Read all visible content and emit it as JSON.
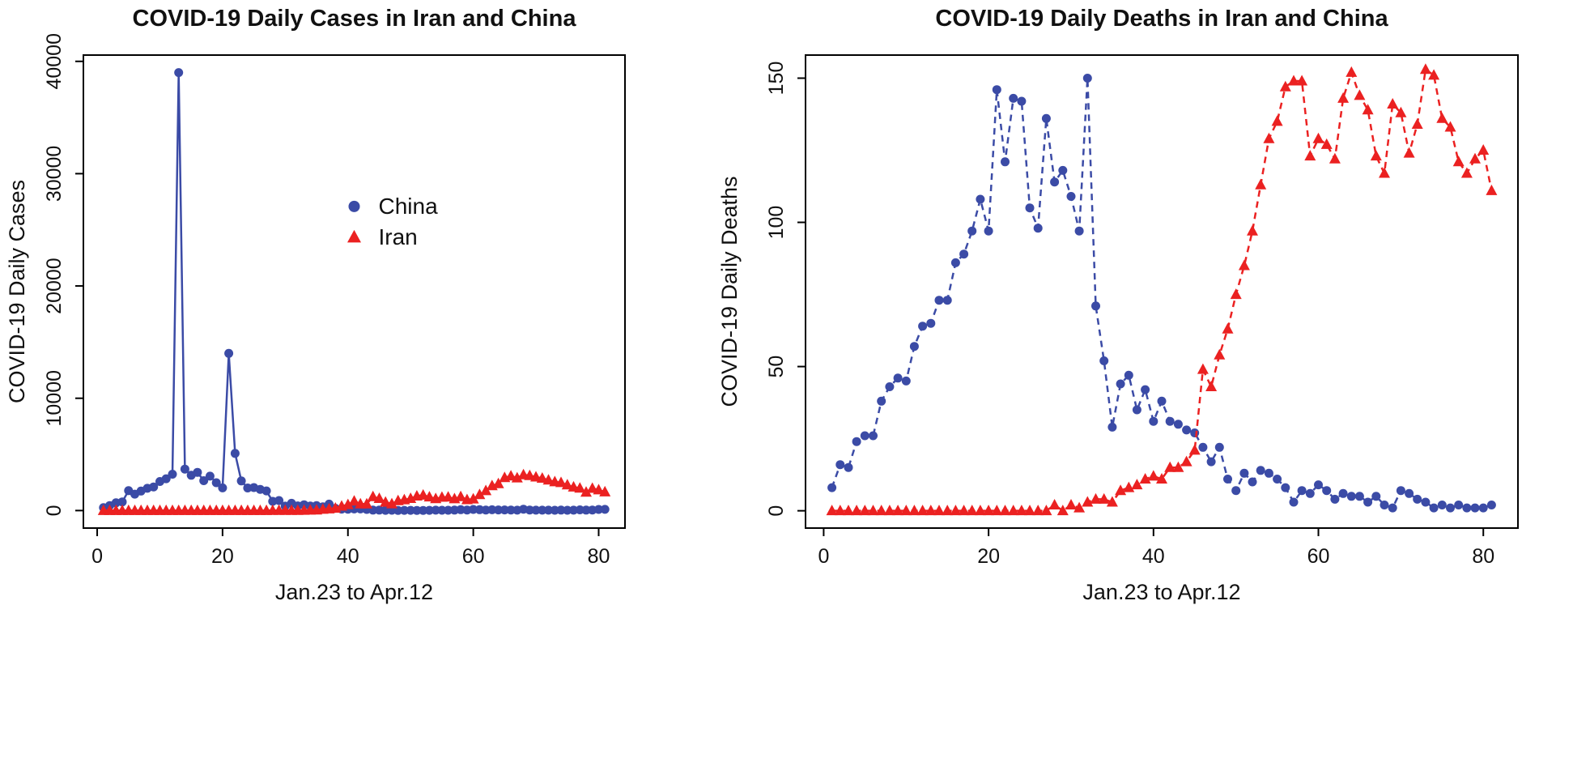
{
  "figure": {
    "background": "#ffffff"
  },
  "colors": {
    "china": "#3b4ba6",
    "iran": "#eb2121",
    "axis": "#000000",
    "text": "#111111"
  },
  "chart_data": [
    {
      "type": "line",
      "title": "COVID-19 Daily Cases in Iran and China",
      "xlabel": "Jan.23 to Apr.12",
      "ylabel": "COVID-19 Daily Cases",
      "x_start": 1,
      "x_step": 1,
      "xticks": [
        0,
        20,
        40,
        60,
        80
      ],
      "yticks": [
        0,
        10000,
        20000,
        30000,
        40000
      ],
      "xlim": [
        -2.2,
        84.2
      ],
      "ylim": [
        -1560,
        40560
      ],
      "grid": false,
      "legend": {
        "visible": true,
        "position_fraction": {
          "x": 0.5,
          "y": 0.32
        },
        "entries": [
          {
            "label": "China",
            "marker": "circle",
            "color_key": "china"
          },
          {
            "label": "Iran",
            "marker": "triangle",
            "color_key": "iran"
          }
        ]
      },
      "series": [
        {
          "name": "China",
          "marker": "circle",
          "color_key": "china",
          "line": "solid",
          "values": [
            259,
            444,
            688,
            769,
            1771,
            1459,
            1737,
            1982,
            2102,
            2590,
            2829,
            3235,
            39000,
            3694,
            3143,
            3399,
            2656,
            3062,
            2478,
            2015,
            14000,
            5090,
            2641,
            2009,
            2048,
            1886,
            1749,
            820,
            889,
            397,
            650,
            415,
            518,
            412,
            439,
            327,
            573,
            202,
            125,
            119,
            139,
            143,
            99,
            44,
            40,
            19,
            24,
            15,
            20,
            16,
            11,
            13,
            21,
            32,
            26,
            29,
            39,
            78,
            46,
            102,
            78,
            47,
            67,
            55,
            54,
            45,
            31,
            123,
            48,
            36,
            35,
            31,
            30,
            39,
            30,
            32,
            63,
            42,
            46,
            99,
            108
          ]
        },
        {
          "name": "Iran",
          "marker": "triangle",
          "color_key": "iran",
          "line": "solid",
          "values": [
            0,
            0,
            0,
            0,
            0,
            0,
            0,
            0,
            0,
            0,
            0,
            0,
            0,
            0,
            0,
            0,
            0,
            0,
            0,
            0,
            0,
            0,
            0,
            0,
            0,
            0,
            0,
            2,
            3,
            13,
            10,
            15,
            18,
            34,
            44,
            106,
            143,
            205,
            385,
            523,
            835,
            586,
            591,
            1234,
            1076,
            743,
            595,
            881,
            958,
            1075,
            1289,
            1365,
            1209,
            1053,
            1178,
            1192,
            1046,
            1237,
            966,
            1028,
            1411,
            1762,
            2206,
            2389,
            2926,
            3076,
            2901,
            3186,
            3110,
            2987,
            2875,
            2715,
            2560,
            2483,
            2274,
            2089,
            1997,
            1634,
            1972,
            1837,
            1657
          ]
        }
      ]
    },
    {
      "type": "line",
      "title": "COVID-19 Daily Deaths in Iran and China",
      "xlabel": "Jan.23 to Apr.12",
      "ylabel": "COVID-19 Daily Deaths",
      "x_start": 1,
      "x_step": 1,
      "xticks": [
        0,
        20,
        40,
        60,
        80
      ],
      "yticks": [
        0,
        50,
        100,
        150
      ],
      "xlim": [
        -2.2,
        84.2
      ],
      "ylim": [
        -6,
        158
      ],
      "grid": false,
      "legend": {
        "visible": false,
        "entries": []
      },
      "series": [
        {
          "name": "China",
          "marker": "circle",
          "color_key": "china",
          "line": "dashed",
          "values": [
            8,
            16,
            15,
            24,
            26,
            26,
            38,
            43,
            46,
            45,
            57,
            64,
            65,
            73,
            73,
            86,
            89,
            97,
            108,
            97,
            146,
            121,
            143,
            142,
            105,
            98,
            136,
            114,
            118,
            109,
            97,
            150,
            71,
            52,
            29,
            44,
            47,
            35,
            42,
            31,
            38,
            31,
            30,
            28,
            27,
            22,
            17,
            22,
            11,
            7,
            13,
            10,
            14,
            13,
            11,
            8,
            3,
            7,
            6,
            9,
            7,
            4,
            6,
            5,
            5,
            3,
            5,
            2,
            1,
            7,
            6,
            4,
            3,
            1,
            2,
            1,
            2,
            1,
            1,
            1,
            2
          ]
        },
        {
          "name": "Iran",
          "marker": "triangle",
          "color_key": "iran",
          "line": "dashed",
          "values": [
            0,
            0,
            0,
            0,
            0,
            0,
            0,
            0,
            0,
            0,
            0,
            0,
            0,
            0,
            0,
            0,
            0,
            0,
            0,
            0,
            0,
            0,
            0,
            0,
            0,
            0,
            0,
            2,
            0,
            2,
            1,
            3,
            4,
            4,
            3,
            7,
            8,
            9,
            11,
            12,
            11,
            15,
            15,
            17,
            21,
            49,
            43,
            54,
            63,
            75,
            85,
            97,
            113,
            129,
            135,
            147,
            149,
            149,
            123,
            129,
            127,
            122,
            143,
            152,
            144,
            139,
            123,
            117,
            141,
            138,
            124,
            134,
            153,
            151,
            136,
            133,
            121,
            117,
            122,
            125,
            111
          ]
        }
      ]
    }
  ]
}
